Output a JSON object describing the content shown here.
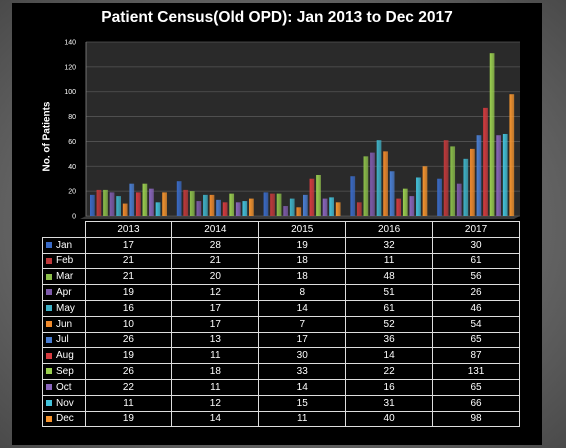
{
  "chart_data": {
    "type": "bar",
    "title": "Patient Census(Old OPD): Jan 2013 to Dec 2017",
    "ylabel": "No. of Patients",
    "xlabel": "",
    "ylim": [
      0,
      140
    ],
    "yticks": [
      0,
      20,
      40,
      60,
      80,
      100,
      120,
      140
    ],
    "categories": [
      "2013",
      "2014",
      "2015",
      "2016",
      "2017"
    ],
    "legend": "data-table",
    "grid": true,
    "series": [
      {
        "name": "Jan",
        "color": "#3a6bc7",
        "values": [
          17,
          28,
          19,
          32,
          30
        ]
      },
      {
        "name": "Feb",
        "color": "#c0393b",
        "values": [
          21,
          21,
          18,
          11,
          61
        ]
      },
      {
        "name": "Mar",
        "color": "#8cbf4a",
        "values": [
          21,
          20,
          18,
          48,
          56
        ]
      },
      {
        "name": "Apr",
        "color": "#7e5bab",
        "values": [
          19,
          12,
          8,
          51,
          26
        ]
      },
      {
        "name": "May",
        "color": "#3fb3c9",
        "values": [
          16,
          17,
          14,
          61,
          46
        ]
      },
      {
        "name": "Jun",
        "color": "#f18b2c",
        "values": [
          10,
          17,
          7,
          52,
          54
        ]
      },
      {
        "name": "Jul",
        "color": "#4a7fd4",
        "values": [
          26,
          13,
          17,
          36,
          65
        ]
      },
      {
        "name": "Aug",
        "color": "#d63b3f",
        "values": [
          19,
          11,
          30,
          14,
          87
        ]
      },
      {
        "name": "Sep",
        "color": "#9bd04f",
        "values": [
          26,
          18,
          33,
          22,
          131
        ]
      },
      {
        "name": "Oct",
        "color": "#8b66be",
        "values": [
          22,
          11,
          14,
          16,
          65
        ]
      },
      {
        "name": "Nov",
        "color": "#43c3dc",
        "values": [
          11,
          12,
          15,
          31,
          66
        ]
      },
      {
        "name": "Dec",
        "color": "#f7952e",
        "values": [
          19,
          14,
          11,
          40,
          98
        ]
      }
    ]
  }
}
